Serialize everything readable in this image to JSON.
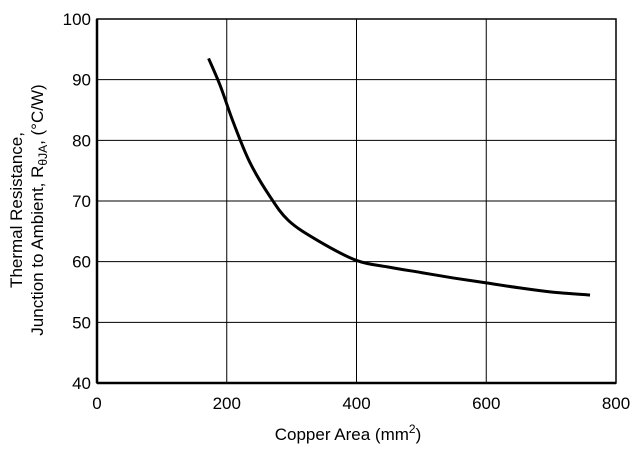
{
  "chart_data": {
    "type": "line",
    "title": "",
    "xlabel": "Copper Area (mm",
    "xlabel_sup": "2",
    "xlabel_close": ")",
    "ylabel_line1": "Thermal Resistance,",
    "ylabel_line2_pre": "Junction to Ambient, R",
    "ylabel_line2_sub": "θJA",
    "ylabel_line2_post": ", (°C/W)",
    "xlim": [
      0,
      800
    ],
    "ylim": [
      40,
      100
    ],
    "x_ticks": [
      0,
      200,
      400,
      600,
      800
    ],
    "y_ticks": [
      40,
      50,
      60,
      70,
      80,
      90,
      100
    ],
    "x_tick_labels": [
      "0",
      "200",
      "400",
      "600",
      "800"
    ],
    "y_tick_labels": [
      "40",
      "50",
      "60",
      "70",
      "80",
      "90",
      "100"
    ],
    "grid": true,
    "series": [
      {
        "color": "#000000",
        "x": [
          172,
          190,
          210,
          235,
          265,
          295,
          340,
          400,
          450,
          500,
          550,
          600,
          650,
          700,
          760
        ],
        "y": [
          93.5,
          89,
          83,
          76.5,
          71,
          66.8,
          63.5,
          60.2,
          59.1,
          58.2,
          57.3,
          56.5,
          55.7,
          55,
          54.5
        ]
      }
    ]
  }
}
